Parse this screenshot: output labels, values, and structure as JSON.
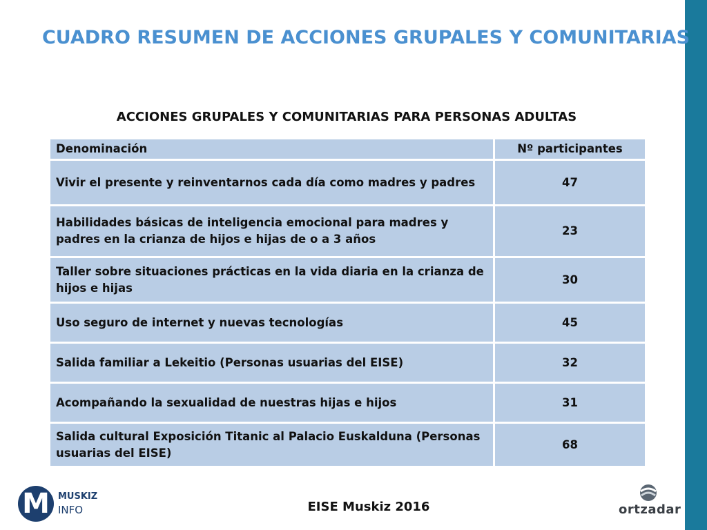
{
  "title": "CUADRO RESUMEN DE ACCIONES GRUPALES Y COMUNITARIAS",
  "subtitle": "ACCIONES GRUPALES Y COMUNITARIAS PARA PERSONAS ADULTAS",
  "table": {
    "headers": {
      "name": "Denominación",
      "participants": "Nº participantes"
    },
    "rows": [
      {
        "name": "Vivir el presente y reinventarnos cada día como madres y padres",
        "participants": "47"
      },
      {
        "name": "Habilidades básicas de inteligencia emocional para madres y padres en la crianza de hijos e hijas de o a 3 años",
        "participants": "23"
      },
      {
        "name": "Taller sobre situaciones prácticas en la vida diaria en la crianza de hijos e hijas",
        "participants": "30"
      },
      {
        "name": "Uso seguro de internet y nuevas tecnologías",
        "participants": "45"
      },
      {
        "name": "Salida familiar a Lekeitio (Personas usuarias del EISE)",
        "participants": "32"
      },
      {
        "name": "Acompañando la sexualidad de nuestras hijas e hijos",
        "participants": "31"
      },
      {
        "name": "Salida cultural Exposición Titanic al Palacio Euskalduna (Personas usuarias del EISE)",
        "participants": "68"
      }
    ]
  },
  "footer": "EISE Muskiz 2016",
  "logos": {
    "muskiz": {
      "letter": "M",
      "line1": "MUSKIZ",
      "line2": "INFO"
    },
    "ortzadar": {
      "text": "ortzadar"
    }
  },
  "colors": {
    "title": "#4a90d0",
    "cell": "#b9cde5",
    "accent_bar": "#1a7a9c"
  }
}
